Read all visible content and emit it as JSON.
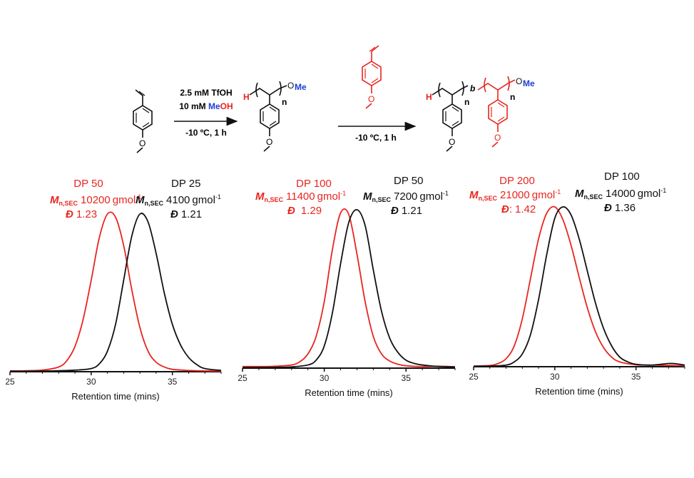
{
  "colors": {
    "first_block": "#e8251f",
    "second_block": "#111111"
  },
  "scheme": {
    "step1": {
      "reagent1": "2.5 mM TfOH",
      "reagent2_prefix": "10 mM ",
      "reagent2_me": "Me",
      "reagent2_oh": "OH",
      "conditions": "-10 ºC, 1 h"
    },
    "step2": {
      "conditions": "-10 ºC, 1 h"
    },
    "homopolymer": {
      "end_h": "H",
      "end_ome_o": "O",
      "end_ome_me": "Me",
      "repeat": "n"
    },
    "block_copolymer": {
      "end_h": "H",
      "block_letter": "b",
      "repeat1": "n",
      "repeat2": "n",
      "end_ome_o": "O",
      "end_ome_me": "Me"
    }
  },
  "chart_data": [
    {
      "type": "line",
      "xlabel": "Retention time (mins)",
      "xlim": [
        25,
        38
      ],
      "xticks": [
        25,
        30,
        35
      ],
      "series": [
        {
          "color": "#e8251f",
          "x": [
            25,
            26,
            27,
            28,
            28.5,
            29,
            29.5,
            30,
            30.5,
            31,
            31.5,
            32,
            32.5,
            33,
            33.5,
            34,
            34.5,
            35,
            36,
            37,
            38
          ],
          "y": [
            0.005,
            0.006,
            0.01,
            0.03,
            0.07,
            0.16,
            0.33,
            0.58,
            0.85,
            1.0,
            0.98,
            0.8,
            0.52,
            0.28,
            0.13,
            0.06,
            0.03,
            0.015,
            0.008,
            0.005,
            0.004
          ]
        },
        {
          "color": "#111111",
          "x": [
            25,
            26,
            27,
            28,
            29,
            30,
            30.5,
            31,
            31.5,
            32,
            32.5,
            33,
            33.5,
            34,
            34.5,
            35,
            35.5,
            36,
            36.5,
            37,
            38
          ],
          "y": [
            0.003,
            0.003,
            0.004,
            0.006,
            0.01,
            0.02,
            0.05,
            0.13,
            0.3,
            0.58,
            0.86,
            1.0,
            0.95,
            0.75,
            0.5,
            0.3,
            0.17,
            0.09,
            0.045,
            0.02,
            0.008
          ]
        }
      ],
      "annotations": {
        "first": {
          "dp": "DP 50",
          "mn": "10200",
          "unit": "gmol",
          "dispersity": "1.23"
        },
        "second": {
          "dp": "DP 25",
          "mn": "4100",
          "unit": "gmol",
          "dispersity": "1.21"
        }
      }
    },
    {
      "type": "line",
      "xlabel": "Retention time (mins)",
      "xlim": [
        25,
        38
      ],
      "xticks": [
        25,
        30,
        35
      ],
      "series": [
        {
          "color": "#e8251f",
          "x": [
            25,
            26,
            27,
            28,
            28.5,
            29,
            29.5,
            30,
            30.5,
            31,
            31.5,
            32,
            32.5,
            33,
            33.5,
            34,
            34.5,
            35,
            36,
            37,
            38
          ],
          "y": [
            0.01,
            0.01,
            0.012,
            0.02,
            0.04,
            0.09,
            0.2,
            0.42,
            0.75,
            0.98,
            0.97,
            0.72,
            0.42,
            0.2,
            0.09,
            0.045,
            0.025,
            0.015,
            0.01,
            0.012,
            0.008
          ]
        },
        {
          "color": "#111111",
          "x": [
            25,
            26,
            27,
            28,
            29,
            29.5,
            30,
            30.5,
            31,
            31.5,
            32,
            32.5,
            33,
            33.5,
            34,
            34.5,
            35,
            35.5,
            36,
            37,
            38
          ],
          "y": [
            0.004,
            0.004,
            0.005,
            0.008,
            0.02,
            0.05,
            0.14,
            0.35,
            0.66,
            0.92,
            1.0,
            0.9,
            0.62,
            0.36,
            0.19,
            0.1,
            0.05,
            0.03,
            0.02,
            0.01,
            0.008
          ]
        }
      ],
      "annotations": {
        "first": {
          "dp": "DP 100",
          "mn": "11400",
          "unit": "gmol",
          "dispersity": "1.29"
        },
        "second": {
          "dp": "DP 50",
          "mn": "7200",
          "unit": "gmol",
          "dispersity": "1.21"
        }
      }
    },
    {
      "type": "line",
      "xlabel": "Retention time (mins)",
      "xlim": [
        25,
        38
      ],
      "xticks": [
        25,
        30,
        35
      ],
      "series": [
        {
          "color": "#e8251f",
          "x": [
            25,
            26,
            26.5,
            27,
            27.5,
            28,
            28.5,
            29,
            29.5,
            30,
            30.5,
            31,
            31.5,
            32,
            32.5,
            33,
            33.5,
            34,
            35,
            36,
            37,
            38
          ],
          "y": [
            0.004,
            0.008,
            0.02,
            0.05,
            0.13,
            0.3,
            0.55,
            0.8,
            0.96,
            1.0,
            0.92,
            0.76,
            0.56,
            0.37,
            0.22,
            0.12,
            0.06,
            0.03,
            0.012,
            0.01,
            0.008,
            0.006
          ]
        },
        {
          "color": "#111111",
          "x": [
            25,
            26,
            27,
            27.5,
            28,
            28.5,
            29,
            29.5,
            30,
            30.5,
            31,
            31.5,
            32,
            32.5,
            33,
            33.5,
            34,
            34.5,
            35,
            36,
            37,
            37.5,
            38
          ],
          "y": [
            0.003,
            0.004,
            0.01,
            0.03,
            0.08,
            0.2,
            0.42,
            0.7,
            0.93,
            1.0,
            0.95,
            0.8,
            0.6,
            0.4,
            0.24,
            0.13,
            0.06,
            0.03,
            0.015,
            0.01,
            0.02,
            0.018,
            0.01
          ]
        }
      ],
      "annotations": {
        "first": {
          "dp": "DP 200",
          "mn": "21000",
          "unit": "gmol",
          "dispersity": "1.42"
        },
        "second": {
          "dp": "DP 100",
          "mn": "14000",
          "unit": "gmol",
          "dispersity": "1.36"
        }
      }
    }
  ],
  "labels": {
    "mn_symbol": "M",
    "mn_sub": "n,SEC",
    "dispersity_symbol": "Đ",
    "exponent": "-1"
  }
}
